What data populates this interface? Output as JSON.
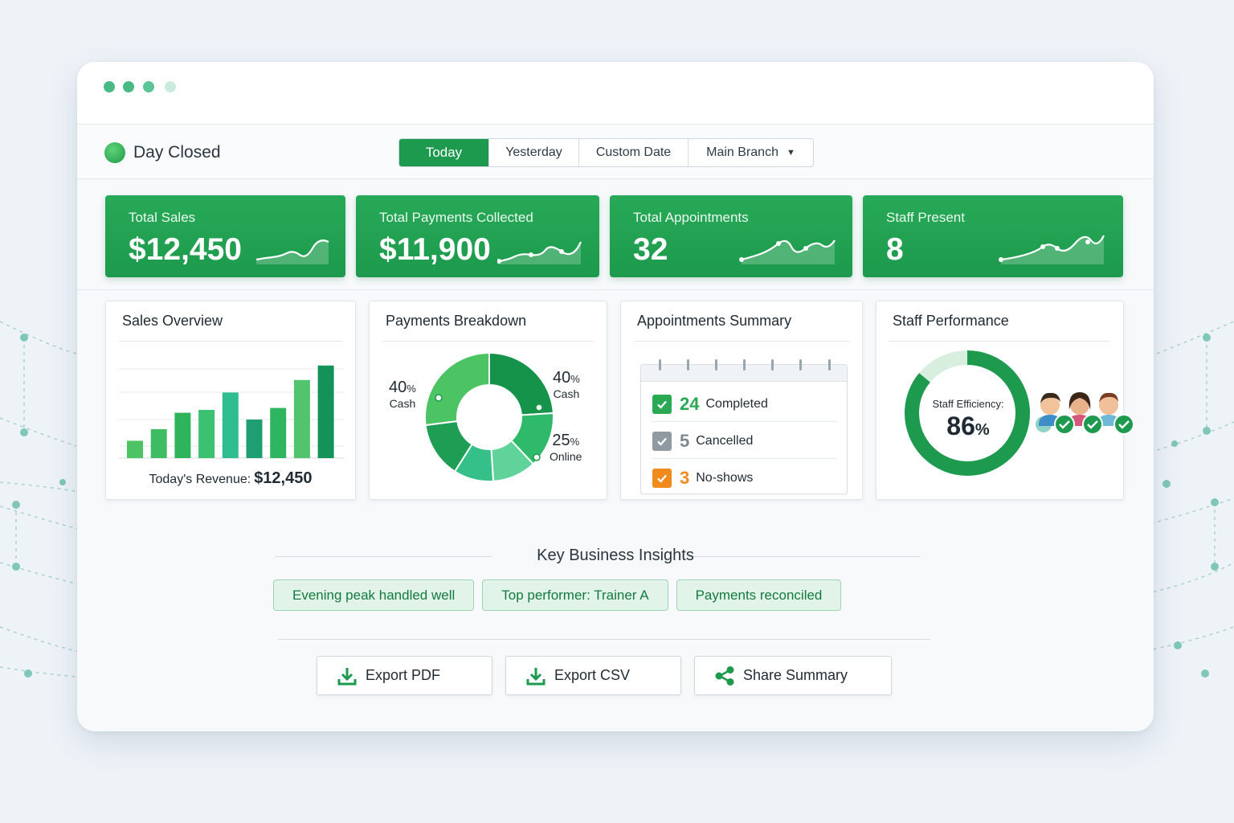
{
  "status": {
    "label": "Day Closed"
  },
  "filters": {
    "tabs": [
      {
        "label": "Today"
      },
      {
        "label": "Yesterday"
      },
      {
        "label": "Custom Date"
      }
    ],
    "active_tab": "Today",
    "branch": {
      "selected": "Main Branch"
    }
  },
  "kpis": [
    {
      "label": "Total Sales",
      "value": "$12,450"
    },
    {
      "label": "Total Payments Collected",
      "value": "$11,900"
    },
    {
      "label": "Total Appointments",
      "value": "32"
    },
    {
      "label": "Staff Present",
      "value": "8"
    }
  ],
  "sales_overview": {
    "title": "Sales Overview",
    "revenue_label": "Today's Revenue:",
    "revenue_value": "$12,450"
  },
  "payments_breakdown": {
    "title": "Payments Breakdown",
    "labels": [
      {
        "pct": "40",
        "unit": "%",
        "name": "Cash"
      },
      {
        "pct": "40",
        "unit": "%",
        "name": "Cash"
      },
      {
        "pct": "25",
        "unit": "%",
        "name": "Online"
      }
    ]
  },
  "appointments_summary": {
    "title": "Appointments Summary",
    "rows": [
      {
        "count": "24",
        "label": "Completed",
        "color": "#2aa955"
      },
      {
        "count": "5",
        "label": "Cancelled",
        "color": "#8f9aa3"
      },
      {
        "count": "3",
        "label": "No-shows",
        "color": "#f08a1c"
      }
    ]
  },
  "staff_performance": {
    "title": "Staff Performance",
    "efficiency_label": "Staff Efficiency:",
    "efficiency_value": "86",
    "efficiency_unit": "%"
  },
  "insights": {
    "title": "Key Business Insights",
    "chips": [
      "Evening peak handled well",
      "Top performer: Trainer A",
      "Payments reconciled"
    ]
  },
  "actions": {
    "export_pdf": "Export PDF",
    "export_csv": "Export CSV",
    "share": "Share Summary"
  },
  "chart_data": [
    {
      "type": "bar",
      "title": "Sales Overview",
      "categories": [
        "",
        "",
        "",
        "",
        "",
        "",
        "",
        "",
        ""
      ],
      "values": [
        18,
        30,
        47,
        50,
        68,
        40,
        52,
        81,
        96
      ],
      "ylim": [
        0,
        100
      ],
      "grid": true
    },
    {
      "type": "pie",
      "title": "Payments Breakdown",
      "values": [
        24,
        14,
        11,
        10,
        14,
        27
      ],
      "colors": [
        "#15934a",
        "#2fb96a",
        "#5fd39a",
        "#35c08a",
        "#1e9e55",
        "#4cc464"
      ]
    }
  ],
  "colors": {
    "brand": "#1e9a4f",
    "accent_light": "#e2f4ea"
  }
}
